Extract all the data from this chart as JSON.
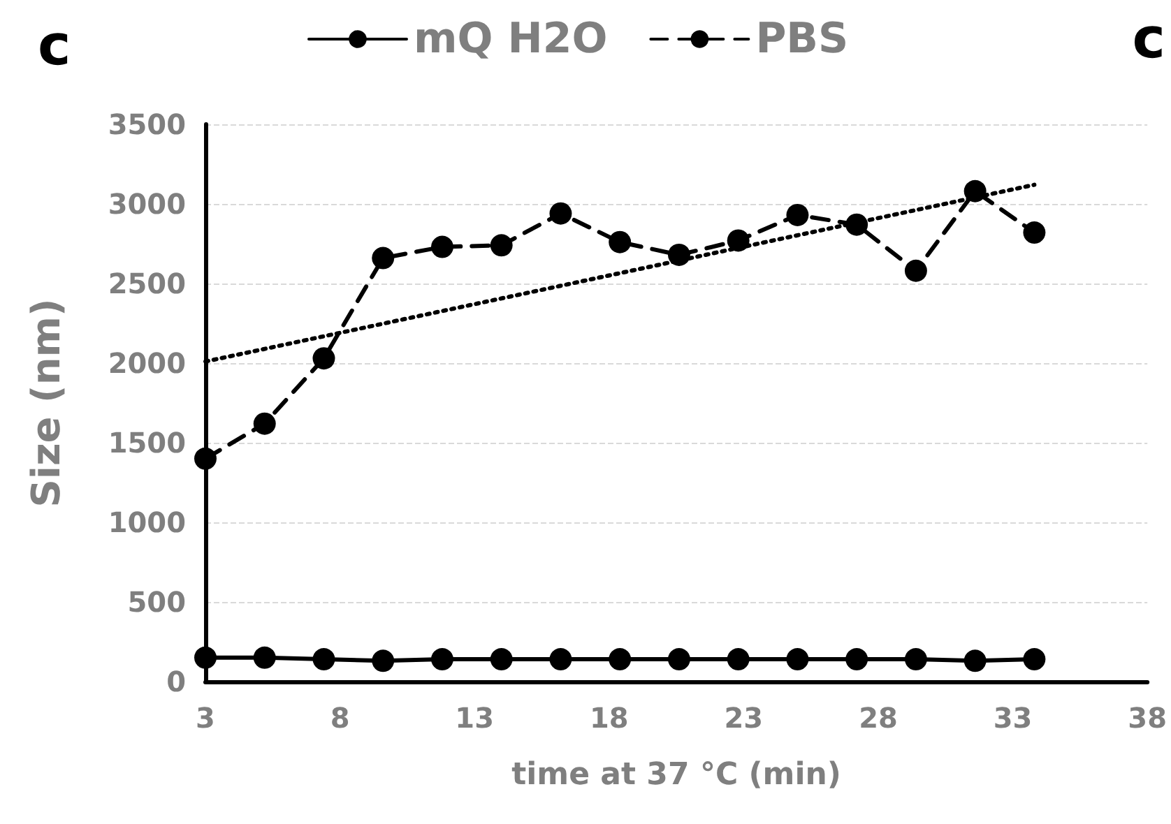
{
  "chart_data": {
    "type": "line",
    "title": "c",
    "annotations": [
      "c"
    ],
    "xlabel": "time at 37 °C (min)",
    "ylabel": "Size (nm)",
    "x": [
      3,
      5.2,
      7.4,
      9.6,
      11.8,
      14,
      16.2,
      18.4,
      20.6,
      22.8,
      25,
      27.2,
      29.4,
      31.6,
      33.8
    ],
    "series": [
      {
        "name": "mQ H2O",
        "color": "#000000",
        "line_style": "solid",
        "values": [
          150,
          150,
          140,
          130,
          140,
          140,
          140,
          140,
          140,
          140,
          140,
          140,
          140,
          130,
          140
        ]
      },
      {
        "name": "PBS",
        "color": "#000000",
        "line_style": "dashed",
        "values": [
          1400,
          1620,
          2030,
          2660,
          2730,
          2740,
          2940,
          2760,
          2680,
          2770,
          2930,
          2870,
          2580,
          3080,
          2820
        ]
      },
      {
        "color": "#000000",
        "line_style": "dotted",
        "marker": "none",
        "x": [
          3,
          33.8
        ],
        "values": [
          2010,
          3120
        ]
      }
    ],
    "marker": "circle",
    "xlim": [
      3,
      38
    ],
    "xticks": [
      3,
      8,
      13,
      18,
      23,
      28,
      33,
      38
    ],
    "ylim": [
      0,
      3500
    ],
    "yticks": [
      0,
      500,
      1000,
      1500,
      2000,
      2500,
      3000,
      3500
    ],
    "grid": "y",
    "legend": "top"
  }
}
